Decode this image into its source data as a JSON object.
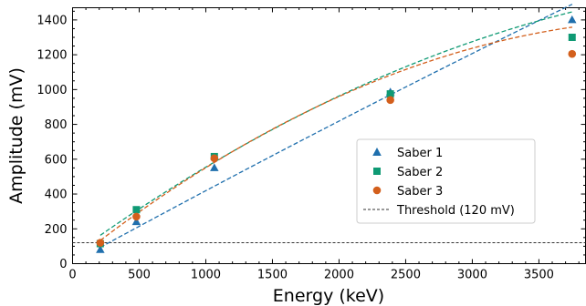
{
  "chart_data": {
    "type": "scatter",
    "title": "",
    "xlabel": "Energy (keV)",
    "ylabel": "Amplitude (mV)",
    "xlim": [
      0,
      3850
    ],
    "ylim": [
      0,
      1470
    ],
    "xticks": [
      0,
      500,
      1000,
      1500,
      2000,
      2500,
      3000,
      3500
    ],
    "yticks": [
      0,
      200,
      400,
      600,
      800,
      1000,
      1200,
      1400
    ],
    "grid": false,
    "legend_position": "center-right",
    "threshold": {
      "label": "Threshold (120 mV)",
      "value": 120,
      "color": "#333333"
    },
    "series": [
      {
        "name": "Saber 1",
        "marker": "triangle",
        "color": "#1f6fad",
        "x": [
          208,
          479,
          1064,
          2385,
          3749
        ],
        "y": [
          80,
          240,
          550,
          985,
          1400
        ],
        "fit": {
          "x": [
            208,
            3750
          ],
          "a": -6e-06,
          "b": 0.418,
          "c": 7
        }
      },
      {
        "name": "Saber 2",
        "marker": "square",
        "color": "#0f9a74",
        "x": [
          208,
          479,
          1064,
          2385,
          3749
        ],
        "y": [
          115,
          310,
          615,
          975,
          1300
        ],
        "fit": {
          "x": [
            208,
            3750
          ],
          "a": -4.8e-05,
          "b": 0.5524,
          "c": 50
        }
      },
      {
        "name": "Saber 3",
        "marker": "circle",
        "color": "#d35f1c",
        "x": [
          208,
          479,
          1064,
          2385,
          3749
        ],
        "y": [
          120,
          270,
          605,
          940,
          1205
        ],
        "fit": {
          "x": [
            208,
            3750
          ],
          "a": -6.6e-05,
          "b": 0.6071,
          "c": 10
        }
      }
    ]
  }
}
